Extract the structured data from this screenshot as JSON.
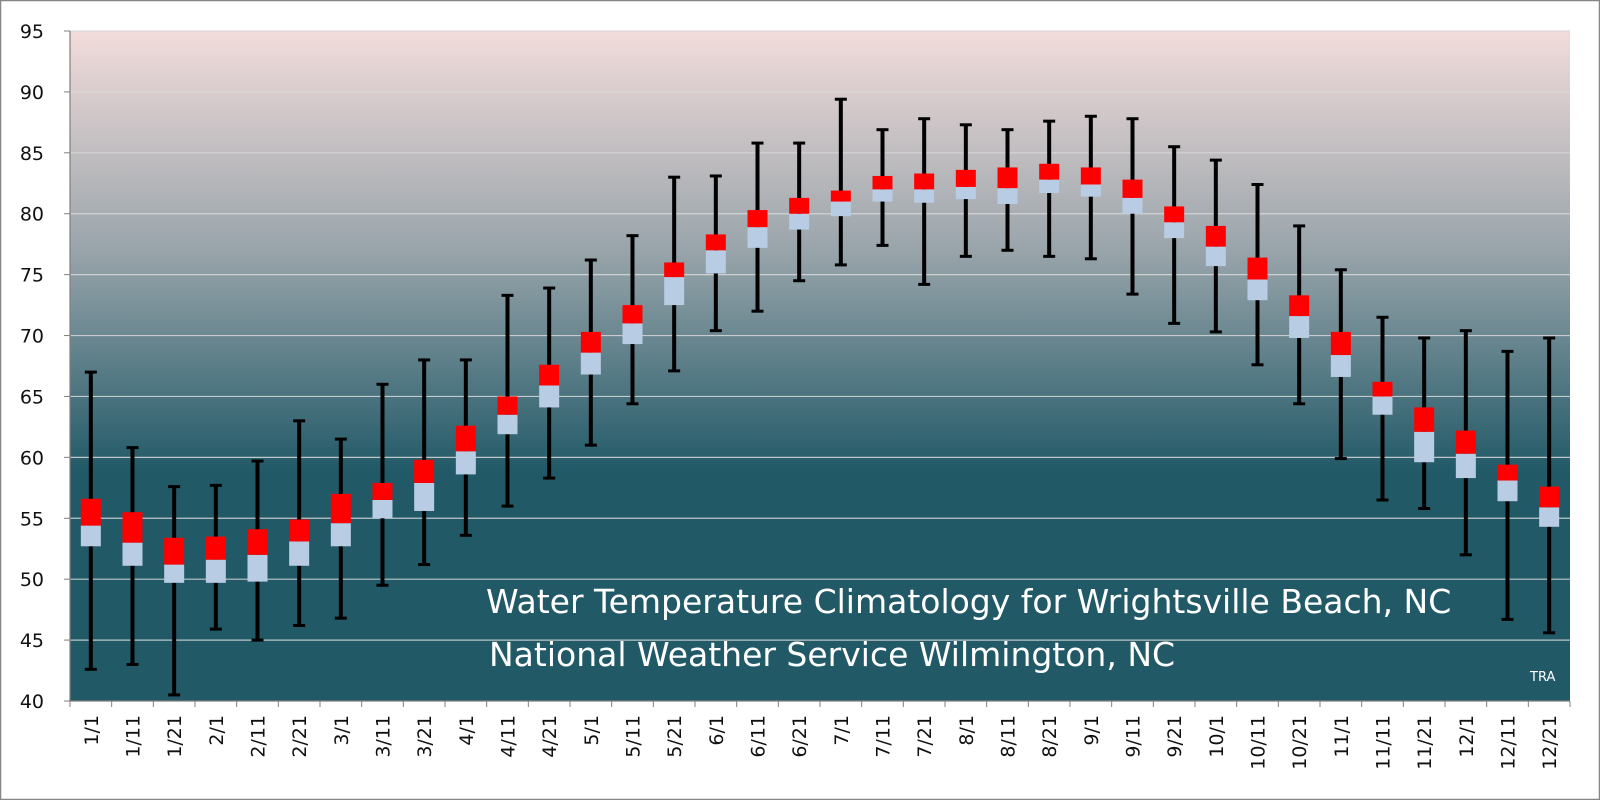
{
  "chart_data": {
    "type": "box",
    "title": "Water Temperature Climatology for Wrightsville Beach, NC",
    "subtitle": "National Weather Service Wilmington, NC",
    "credit": "TRA",
    "xlabel": "",
    "ylabel": "",
    "ylim": [
      40,
      95
    ],
    "yticks": [
      40,
      45,
      50,
      55,
      60,
      65,
      70,
      75,
      80,
      85,
      90,
      95
    ],
    "grid": true,
    "legend": "none",
    "categories": [
      "1/1",
      "1/11",
      "1/21",
      "2/1",
      "2/11",
      "2/21",
      "3/1",
      "3/11",
      "3/21",
      "4/1",
      "4/11",
      "4/21",
      "5/1",
      "5/11",
      "5/21",
      "6/1",
      "6/11",
      "6/21",
      "7/1",
      "7/11",
      "7/21",
      "8/1",
      "8/11",
      "8/21",
      "9/1",
      "9/11",
      "9/21",
      "10/1",
      "10/11",
      "10/21",
      "11/1",
      "11/11",
      "11/21",
      "12/1",
      "12/11",
      "12/21"
    ],
    "low": [
      42.6,
      43.0,
      40.5,
      45.9,
      45.0,
      46.2,
      46.8,
      49.5,
      51.2,
      53.6,
      56.0,
      58.3,
      61.0,
      64.4,
      67.1,
      70.4,
      72.0,
      74.5,
      75.8,
      77.4,
      74.2,
      76.5,
      77.0,
      76.5,
      76.3,
      73.4,
      71.0,
      70.3,
      67.6,
      64.4,
      59.9,
      56.5,
      55.8,
      52.0,
      46.7,
      45.6
    ],
    "q1": [
      52.7,
      51.1,
      49.7,
      49.7,
      49.8,
      51.1,
      52.7,
      55.0,
      55.6,
      58.6,
      61.9,
      64.1,
      66.8,
      69.3,
      72.5,
      75.1,
      77.2,
      78.7,
      79.8,
      81.0,
      80.9,
      81.2,
      80.8,
      81.7,
      81.4,
      80.0,
      78.0,
      75.7,
      72.9,
      69.8,
      66.6,
      63.5,
      59.6,
      58.3,
      56.4,
      54.3
    ],
    "median": [
      54.4,
      53.0,
      51.2,
      51.6,
      52.0,
      53.1,
      54.6,
      56.5,
      57.9,
      60.5,
      63.5,
      65.9,
      68.6,
      71.0,
      74.8,
      77.0,
      78.9,
      80.0,
      81.0,
      82.0,
      82.0,
      82.2,
      82.1,
      82.8,
      82.4,
      81.3,
      79.3,
      77.3,
      74.6,
      71.6,
      68.4,
      65.0,
      62.1,
      60.3,
      58.1,
      55.9
    ],
    "q3": [
      56.6,
      55.5,
      53.4,
      53.5,
      54.1,
      54.9,
      57.0,
      57.9,
      59.8,
      62.6,
      65.0,
      67.6,
      70.3,
      72.5,
      76.0,
      78.3,
      80.3,
      81.3,
      81.9,
      83.1,
      83.3,
      83.6,
      83.8,
      84.1,
      83.8,
      82.8,
      80.6,
      79.0,
      76.4,
      73.3,
      70.3,
      66.2,
      64.1,
      62.2,
      59.4,
      57.6
    ],
    "high": [
      67.0,
      60.8,
      57.6,
      57.7,
      59.7,
      63.0,
      61.5,
      66.0,
      68.0,
      68.0,
      73.3,
      73.9,
      76.2,
      78.2,
      83.0,
      83.1,
      85.8,
      85.8,
      89.4,
      86.9,
      87.8,
      87.3,
      86.9,
      87.6,
      88.0,
      87.8,
      85.5,
      84.4,
      82.4,
      79.0,
      75.4,
      71.5,
      69.8,
      70.4,
      68.7,
      69.8
    ]
  },
  "colors": {
    "upper_box": "#ff0000",
    "lower_box": "#b8cce4",
    "whisker": "#000000",
    "bg_top": "#f2dcdb",
    "bg_mid": "#98a4aa",
    "bg_bottom": "#215967",
    "gridline": "#d9d9d9",
    "axis": "#7f7f7f",
    "frame": "#868686",
    "title_text": "#ffffff"
  }
}
